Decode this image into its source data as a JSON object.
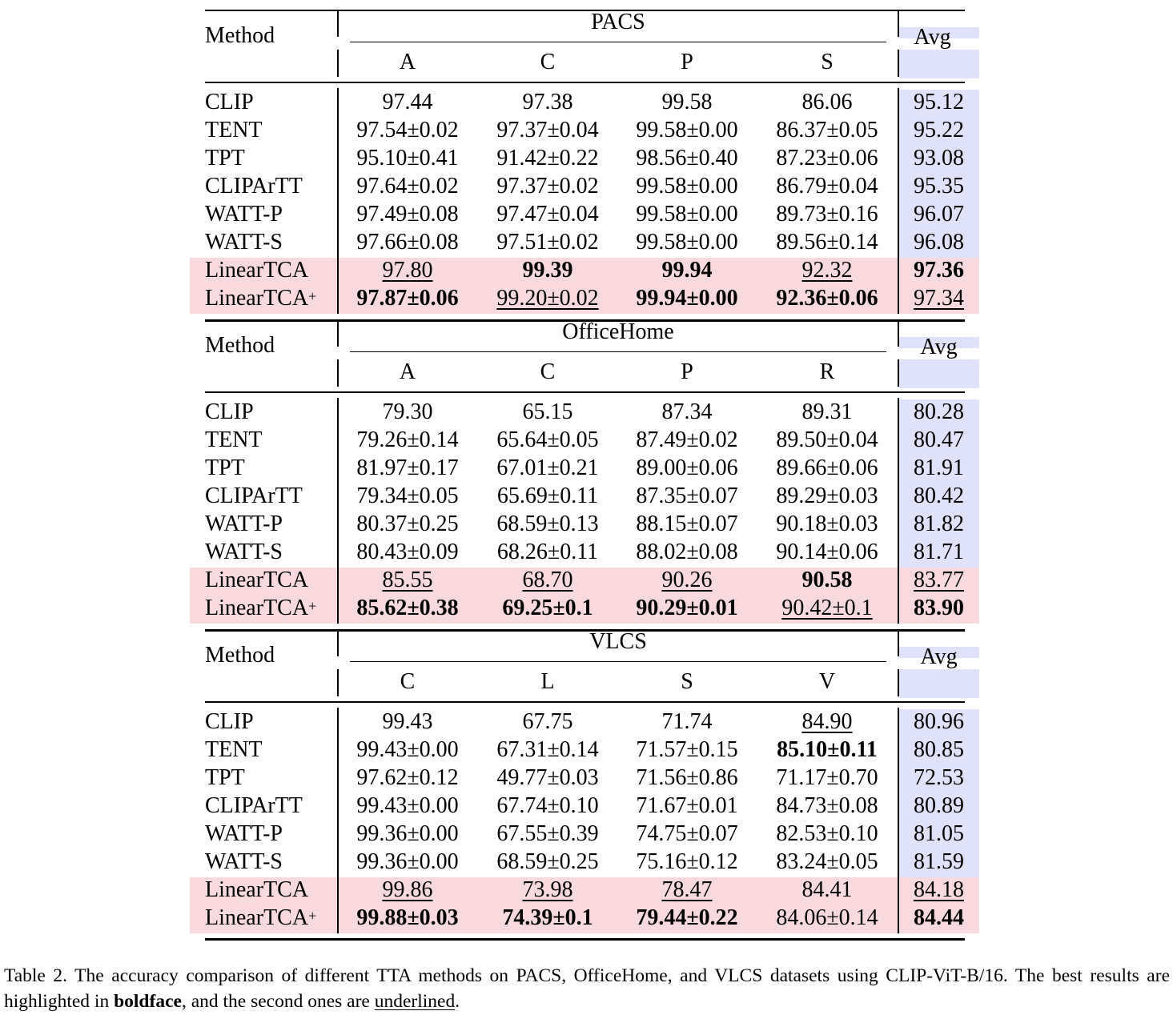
{
  "blocks": [
    {
      "dataset": "PACS",
      "method_header": "Method",
      "avg_header": "Avg",
      "domains": [
        "A",
        "C",
        "P",
        "S"
      ],
      "rows": [
        {
          "method": "CLIP",
          "values": [
            "97.44",
            "97.38",
            "99.58",
            "86.06"
          ],
          "avg": "95.12"
        },
        {
          "method": "TENT",
          "values": [
            "97.54±0.02",
            "97.37±0.04",
            "99.58±0.00",
            "86.37±0.05"
          ],
          "avg": "95.22"
        },
        {
          "method": "TPT",
          "values": [
            "95.10±0.41",
            "91.42±0.22",
            "98.56±0.40",
            "87.23±0.06"
          ],
          "avg": "93.08"
        },
        {
          "method": "CLIPArTT",
          "values": [
            "97.64±0.02",
            "97.37±0.02",
            "99.58±0.00",
            "86.79±0.04"
          ],
          "avg": "95.35"
        },
        {
          "method": "WATT-P",
          "values": [
            "97.49±0.08",
            "97.47±0.04",
            "99.58±0.00",
            "89.73±0.16"
          ],
          "avg": "96.07"
        },
        {
          "method": "WATT-S",
          "values": [
            "97.66±0.08",
            "97.51±0.02",
            "99.58±0.00",
            "89.56±0.14"
          ],
          "avg": "96.08"
        },
        {
          "method": "LinearTCA",
          "values": [
            "97.80",
            "99.39",
            "99.94",
            "92.32"
          ],
          "avg": "97.36"
        },
        {
          "method": "LinearTCA",
          "sup": "+",
          "values": [
            "97.87±0.06",
            "99.20±0.02",
            "99.94±0.00",
            "92.36±0.06"
          ],
          "avg": "97.34"
        }
      ]
    },
    {
      "dataset": "OfficeHome",
      "method_header": "Method",
      "avg_header": "Avg",
      "domains": [
        "A",
        "C",
        "P",
        "R"
      ],
      "rows": [
        {
          "method": "CLIP",
          "values": [
            "79.30",
            "65.15",
            "87.34",
            "89.31"
          ],
          "avg": "80.28"
        },
        {
          "method": "TENT",
          "values": [
            "79.26±0.14",
            "65.64±0.05",
            "87.49±0.02",
            "89.50±0.04"
          ],
          "avg": "80.47"
        },
        {
          "method": "TPT",
          "values": [
            "81.97±0.17",
            "67.01±0.21",
            "89.00±0.06",
            "89.66±0.06"
          ],
          "avg": "81.91"
        },
        {
          "method": "CLIPArTT",
          "values": [
            "79.34±0.05",
            "65.69±0.11",
            "87.35±0.07",
            "89.29±0.03"
          ],
          "avg": "80.42"
        },
        {
          "method": "WATT-P",
          "values": [
            "80.37±0.25",
            "68.59±0.13",
            "88.15±0.07",
            "90.18±0.03"
          ],
          "avg": "81.82"
        },
        {
          "method": "WATT-S",
          "values": [
            "80.43±0.09",
            "68.26±0.11",
            "88.02±0.08",
            "90.14±0.06"
          ],
          "avg": "81.71"
        },
        {
          "method": "LinearTCA",
          "values": [
            "85.55",
            "68.70",
            "90.26",
            "90.58"
          ],
          "avg": "83.77"
        },
        {
          "method": "LinearTCA",
          "sup": "+",
          "values": [
            "85.62±0.38",
            "69.25±0.1",
            "90.29±0.01",
            "90.42±0.1"
          ],
          "avg": "83.90"
        }
      ]
    },
    {
      "dataset": "VLCS",
      "method_header": "Method",
      "avg_header": "Avg",
      "domains": [
        "C",
        "L",
        "S",
        "V"
      ],
      "rows": [
        {
          "method": "CLIP",
          "values": [
            "99.43",
            "67.75",
            "71.74",
            "84.90"
          ],
          "avg": "80.96"
        },
        {
          "method": "TENT",
          "values": [
            "99.43±0.00",
            "67.31±0.14",
            "71.57±0.15",
            "85.10±0.11"
          ],
          "avg": "80.85"
        },
        {
          "method": "TPT",
          "values": [
            "97.62±0.12",
            "49.77±0.03",
            "71.56±0.86",
            "71.17±0.70"
          ],
          "avg": "72.53"
        },
        {
          "method": "CLIPArTT",
          "values": [
            "99.43±0.00",
            "67.74±0.10",
            "71.67±0.01",
            "84.73±0.08"
          ],
          "avg": "80.89"
        },
        {
          "method": "WATT-P",
          "values": [
            "99.36±0.00",
            "67.55±0.39",
            "74.75±0.07",
            "82.53±0.10"
          ],
          "avg": "81.05"
        },
        {
          "method": "WATT-S",
          "values": [
            "99.36±0.00",
            "68.59±0.25",
            "75.16±0.12",
            "83.24±0.05"
          ],
          "avg": "81.59"
        },
        {
          "method": "LinearTCA",
          "values": [
            "99.86",
            "73.98",
            "78.47",
            "84.41"
          ],
          "avg": "84.18"
        },
        {
          "method": "LinearTCA",
          "sup": "+",
          "values": [
            "99.88±0.03",
            "74.39±0.1",
            "79.44±0.22",
            "84.06±0.14"
          ],
          "avg": "84.44"
        }
      ]
    }
  ],
  "caption": {
    "part1": "Table 2. The accuracy comparison of different TTA methods on PACS, OfficeHome, and VLCS datasets using CLIP-ViT-B/16. The best results are highlighted in ",
    "bold_word": "boldface",
    "part2": ", and the second ones are ",
    "underline_word": "underlined",
    "part3": "."
  },
  "colors": {
    "avg_column_highlight": "#e0e1fb",
    "ours_row_highlight": "#f8d9dd"
  }
}
